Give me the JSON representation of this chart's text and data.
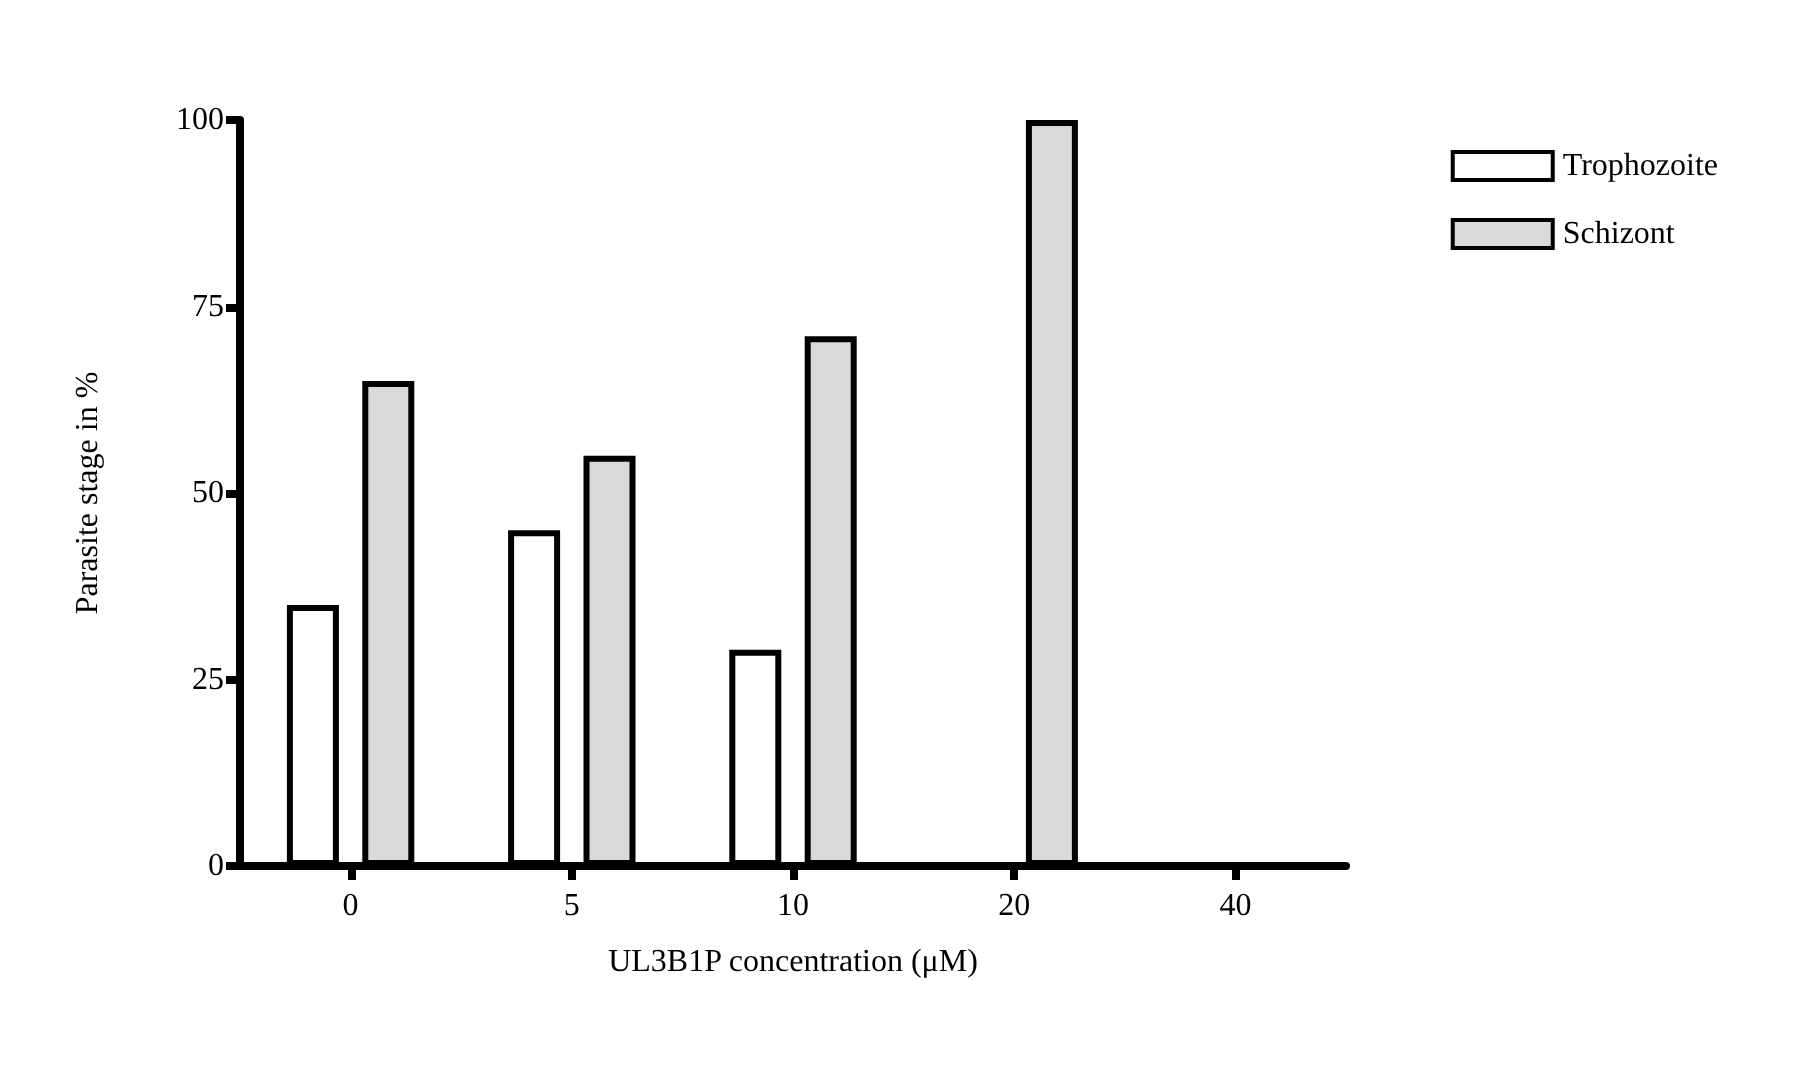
{
  "chart_data": {
    "type": "bar",
    "xlabel": "UL3B1P concentration (μM)",
    "ylabel": "Parasite stage in %",
    "categories": [
      "0",
      "5",
      "10",
      "20",
      "40"
    ],
    "series": [
      {
        "name": "Trophozoite",
        "color": "#ffffff",
        "values": [
          35,
          45,
          29,
          0,
          0
        ]
      },
      {
        "name": "Schizont",
        "color": "#d9d9d9",
        "values": [
          65,
          55,
          71,
          100,
          0
        ]
      }
    ],
    "ylim": [
      0,
      100
    ],
    "yticks": [
      0,
      25,
      50,
      75,
      100
    ],
    "grid": false,
    "legend": "top right"
  }
}
